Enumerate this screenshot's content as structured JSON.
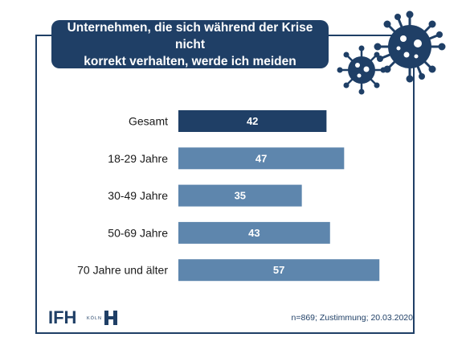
{
  "title_lines": [
    "Unternehmen, die sich während der Krise nicht",
    "korrekt verhalten, werde ich meiden"
  ],
  "footnote": "n=869; Zustimmung; 20.03.2020",
  "logo": {
    "main": "IFH",
    "sub": "KÖLN"
  },
  "colors": {
    "primary": "#1f3f66",
    "bar": "#5e86ad",
    "text": "#1a1a1a"
  },
  "icons": [
    "virus-icon-large",
    "virus-icon-small"
  ],
  "chart_data": {
    "type": "bar",
    "orientation": "horizontal",
    "categories": [
      "Gesamt",
      "18-29 Jahre",
      "30-49 Jahre",
      "50-69 Jahre",
      "70 Jahre und älter"
    ],
    "values": [
      42,
      47,
      35,
      43,
      57
    ],
    "highlight_index": 0,
    "data_labels": true,
    "xlim": [
      0,
      60
    ],
    "grid": false
  }
}
